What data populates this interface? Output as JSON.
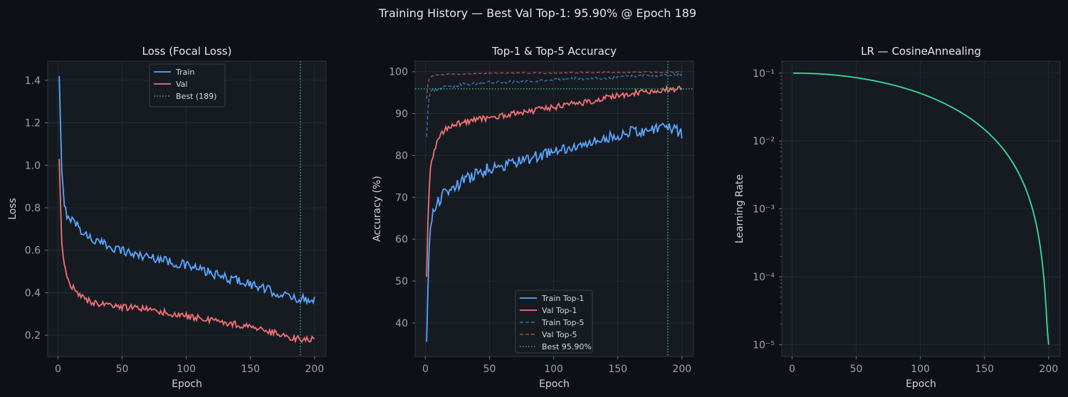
{
  "suptitle": "Training History — Best Val Top-1: 95.90% @ Epoch 189",
  "colors": {
    "background": "#0d1117",
    "axes_bg": "#161b22",
    "grid": "#262c35",
    "train": "#58a6ff",
    "val": "#f47174",
    "best": "#3fcf8e",
    "lr": "#3ddc97"
  },
  "chart_data": [
    {
      "type": "line",
      "title": "Loss (Focal Loss)",
      "xlabel": "Epoch",
      "ylabel": "Loss",
      "xlim": [
        -8,
        209
      ],
      "ylim": [
        0.1,
        1.49
      ],
      "xticks": [
        0,
        50,
        100,
        150,
        200
      ],
      "yticks": [
        0.2,
        0.4,
        0.6,
        0.8,
        1.0,
        1.2,
        1.4
      ],
      "ytick_labels": [
        "0.2",
        "0.4",
        "0.6",
        "0.8",
        "1.0",
        "1.2",
        "1.4"
      ],
      "grid": true,
      "legend_position": "upper center",
      "series": [
        {
          "name": "Train",
          "color": "#58a6ff",
          "style": "solid",
          "x": [
            1,
            3,
            5,
            7,
            10,
            15,
            20,
            25,
            30,
            40,
            50,
            60,
            70,
            80,
            90,
            100,
            110,
            120,
            130,
            140,
            150,
            160,
            170,
            180,
            190,
            200
          ],
          "y": [
            1.42,
            0.96,
            0.8,
            0.77,
            0.75,
            0.72,
            0.68,
            0.66,
            0.64,
            0.62,
            0.6,
            0.58,
            0.57,
            0.56,
            0.54,
            0.53,
            0.51,
            0.49,
            0.47,
            0.46,
            0.44,
            0.42,
            0.4,
            0.38,
            0.37,
            0.37
          ],
          "noise": 0.022
        },
        {
          "name": "Val",
          "color": "#f47174",
          "style": "solid",
          "x": [
            1,
            3,
            5,
            7,
            10,
            15,
            20,
            30,
            40,
            50,
            60,
            70,
            80,
            90,
            100,
            110,
            120,
            130,
            140,
            150,
            160,
            170,
            180,
            190,
            200
          ],
          "y": [
            1.03,
            0.62,
            0.52,
            0.48,
            0.44,
            0.4,
            0.37,
            0.35,
            0.34,
            0.33,
            0.33,
            0.32,
            0.31,
            0.3,
            0.29,
            0.28,
            0.27,
            0.26,
            0.25,
            0.24,
            0.22,
            0.21,
            0.19,
            0.18,
            0.18
          ],
          "noise": 0.015
        },
        {
          "name": "Best (189)",
          "color": "#3fcf8e",
          "style": "dotted",
          "vline_x": 189
        }
      ]
    },
    {
      "type": "line",
      "title": "Top-1 & Top-5 Accuracy",
      "xlabel": "Epoch",
      "ylabel": "Accuracy (%)",
      "xlim": [
        -8,
        209
      ],
      "ylim": [
        32,
        102.5
      ],
      "xticks": [
        0,
        50,
        100,
        150,
        200
      ],
      "yticks": [
        40,
        50,
        60,
        70,
        80,
        90,
        100
      ],
      "ytick_labels": [
        "40",
        "50",
        "60",
        "70",
        "80",
        "90",
        "100"
      ],
      "grid": true,
      "legend_position": "lower center",
      "series": [
        {
          "name": "Train Top-1",
          "color": "#58a6ff",
          "style": "solid",
          "x": [
            1,
            2,
            3,
            4,
            6,
            8,
            10,
            15,
            20,
            30,
            40,
            50,
            60,
            70,
            80,
            90,
            100,
            110,
            120,
            130,
            140,
            150,
            160,
            170,
            180,
            190,
            200
          ],
          "y": [
            35.5,
            48,
            58,
            63,
            66,
            68,
            69,
            71,
            72,
            74,
            75.5,
            77,
            77.5,
            78.5,
            79,
            80,
            81,
            81.5,
            82,
            83,
            84,
            85,
            85.5,
            86,
            86.5,
            87,
            85
          ],
          "noise": 1.4
        },
        {
          "name": "Val Top-1",
          "color": "#f47174",
          "style": "solid",
          "x": [
            1,
            2,
            3,
            4,
            6,
            8,
            10,
            15,
            20,
            30,
            40,
            50,
            60,
            70,
            80,
            90,
            100,
            110,
            120,
            130,
            140,
            150,
            160,
            170,
            180,
            190,
            200
          ],
          "y": [
            51,
            64,
            72,
            77,
            80,
            82,
            84,
            86,
            87,
            88,
            88.5,
            89,
            89.5,
            90,
            90.5,
            91,
            91.5,
            92,
            92.5,
            93,
            93.8,
            94.2,
            94.8,
            95.2,
            95.6,
            95.9,
            95.9
          ],
          "noise": 0.7
        },
        {
          "name": "Train Top-5",
          "color": "#3b7fc4",
          "style": "dashed",
          "x": [
            1,
            2,
            3,
            4,
            6,
            10,
            20,
            30,
            50,
            80,
            100,
            130,
            150,
            170,
            190,
            200
          ],
          "y": [
            84.5,
            91,
            94,
            95,
            95.5,
            96,
            96.5,
            97,
            97.4,
            97.8,
            98.1,
            98.4,
            98.7,
            99,
            99.2,
            99.3
          ],
          "noise": 0.4
        },
        {
          "name": "Val Top-5",
          "color": "#b55a5a",
          "style": "dashed",
          "x": [
            1,
            2,
            3,
            4,
            6,
            10,
            20,
            30,
            50,
            80,
            100,
            130,
            150,
            170,
            190,
            200
          ],
          "y": [
            93.5,
            97,
            98.2,
            98.8,
            99.1,
            99.3,
            99.4,
            99.5,
            99.6,
            99.7,
            99.7,
            99.8,
            99.8,
            99.9,
            99.9,
            99.9
          ],
          "noise": 0.15
        },
        {
          "name": "Best 95.90%",
          "color": "#3fcf8e",
          "style": "dotted",
          "vline_x": 189,
          "hline_y": 95.9
        }
      ]
    },
    {
      "type": "line",
      "title": "LR — CosineAnnealing",
      "xlabel": "Epoch",
      "ylabel": "Learning Rate",
      "xlim": [
        -8,
        209
      ],
      "yscale": "log",
      "ylim": [
        6.7e-06,
        0.15
      ],
      "xticks": [
        0,
        50,
        100,
        150,
        200
      ],
      "yticks": [
        0.1,
        0.01,
        0.001,
        0.0001,
        1e-05
      ],
      "ytick_labels": [
        "10⁻¹",
        "10⁻²",
        "10⁻³",
        "10⁻⁴",
        "10⁻⁵"
      ],
      "grid": true,
      "series": [
        {
          "color": "#3ddc97",
          "style": "solid",
          "schedule": "cosine",
          "lr_max": 0.1,
          "lr_min": 1e-05,
          "epochs": [
            1,
            200
          ]
        }
      ]
    }
  ]
}
